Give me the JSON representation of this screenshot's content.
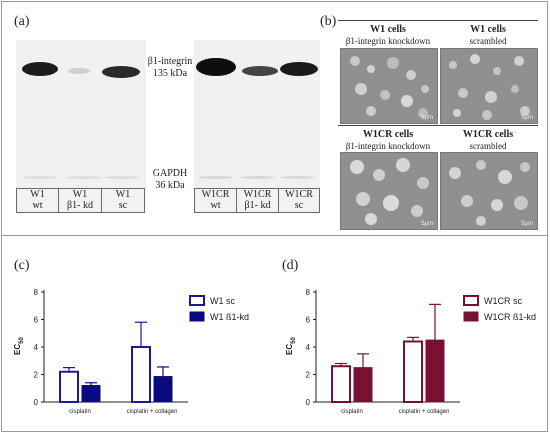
{
  "panels": {
    "a": {
      "tag": "(a)",
      "marker_top": "β1-integrin",
      "marker_top_kda": "135 kDa",
      "marker_bottom": "GAPDH",
      "marker_bottom_kda": "36 kDa",
      "left_lanes": [
        {
          "l1": "W1",
          "l2": "wt"
        },
        {
          "l1": "W1",
          "l2": "β1- kd"
        },
        {
          "l1": "W1",
          "l2": "sc"
        }
      ],
      "right_lanes": [
        {
          "l1": "W1CR",
          "l2": "wt"
        },
        {
          "l1": "W1CR",
          "l2": "β1- kd"
        },
        {
          "l1": "W1CR",
          "l2": "sc"
        }
      ]
    },
    "b": {
      "tag": "(b)",
      "images": [
        {
          "title": "W1 cells",
          "sub": "β1-integrin  knockdown",
          "scale": "5μm"
        },
        {
          "title": "W1 cells",
          "sub": "scrambled",
          "scale": "5μm"
        },
        {
          "title": "W1CR cells",
          "sub": "β1-integrin  knockdown",
          "scale": "5μm"
        },
        {
          "title": "W1CR cells",
          "sub": "scrambled",
          "scale": "5μm"
        }
      ]
    },
    "c": {
      "tag": "(c)"
    },
    "d": {
      "tag": "(d)"
    }
  },
  "chart_data": [
    {
      "type": "bar",
      "panel": "c",
      "categories": [
        "cisplatin",
        "cisplatin + collagen"
      ],
      "series": [
        {
          "name": "W1 sc",
          "values": [
            2.2,
            4.0
          ],
          "errors": [
            0.3,
            1.8
          ],
          "color": "#1a1a8c",
          "fill": "hollow"
        },
        {
          "name": "W1 ß1-kd",
          "values": [
            1.2,
            1.85
          ],
          "errors": [
            0.2,
            0.7
          ],
          "color": "#0a0a80",
          "fill": "solid"
        }
      ],
      "ylabel": "EC50",
      "ylim": [
        0,
        8
      ],
      "yticks": [
        0,
        2,
        4,
        6,
        8
      ],
      "legend": "top-right"
    },
    {
      "type": "bar",
      "panel": "d",
      "categories": [
        "cisplatin",
        "cisplatin + collagen"
      ],
      "series": [
        {
          "name": "W1CR sc",
          "values": [
            2.6,
            4.4
          ],
          "errors": [
            0.2,
            0.3
          ],
          "color": "#7a1030",
          "fill": "hollow"
        },
        {
          "name": "W1CR ß1-kd",
          "values": [
            2.5,
            4.5
          ],
          "errors": [
            1.0,
            2.6
          ],
          "color": "#7a1030",
          "fill": "solid"
        }
      ],
      "ylabel": "EC50",
      "ylim": [
        0,
        8
      ],
      "yticks": [
        0,
        2,
        4,
        6,
        8
      ],
      "legend": "top-right"
    }
  ]
}
